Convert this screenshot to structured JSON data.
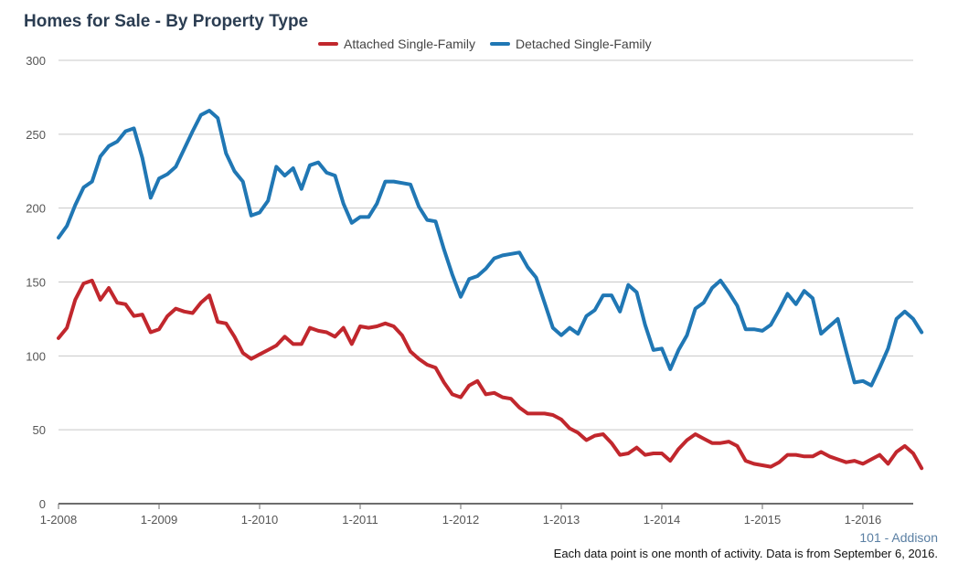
{
  "title": "Homes for Sale - By Property Type",
  "footer": {
    "location": "101 - Addison",
    "note": "Each data point is one month of activity. Data is from September 6, 2016."
  },
  "chart_data": {
    "type": "line",
    "title": "Homes for Sale - By Property Type",
    "xlabel": "",
    "ylabel": "",
    "ylim": [
      0,
      300
    ],
    "yticks": [
      0,
      50,
      100,
      150,
      200,
      250,
      300
    ],
    "xticks": [
      "1-2008",
      "1-2009",
      "1-2010",
      "1-2011",
      "1-2012",
      "1-2013",
      "1-2014",
      "1-2015",
      "1-2016"
    ],
    "x_start": "1-2008",
    "grid": true,
    "legend": "top",
    "series": [
      {
        "name": "Attached Single-Family",
        "color": "#c1272d",
        "values": [
          112,
          119,
          138,
          149,
          151,
          138,
          146,
          136,
          135,
          127,
          128,
          116,
          118,
          127,
          132,
          130,
          129,
          136,
          141,
          123,
          122,
          113,
          102,
          98,
          101,
          104,
          107,
          113,
          108,
          108,
          119,
          117,
          116,
          113,
          119,
          108,
          120,
          119,
          120,
          122,
          120,
          114,
          103,
          98,
          94,
          92,
          82,
          74,
          72,
          80,
          83,
          74,
          75,
          72,
          71,
          65,
          61,
          61,
          61,
          60,
          57,
          51,
          48,
          43,
          46,
          47,
          41,
          33,
          34,
          38,
          33,
          34,
          34,
          29,
          37,
          43,
          47,
          44,
          41,
          41,
          42,
          39,
          29,
          27,
          26,
          25,
          28,
          33,
          33,
          32,
          32,
          35,
          32,
          30,
          28,
          29,
          27,
          30,
          33,
          27,
          35,
          39,
          34,
          24
        ]
      },
      {
        "name": "Detached Single-Family",
        "color": "#2077b4",
        "values": [
          180,
          188,
          202,
          214,
          218,
          235,
          242,
          245,
          252,
          254,
          234,
          207,
          220,
          223,
          228,
          240,
          252,
          263,
          266,
          261,
          237,
          225,
          218,
          195,
          197,
          205,
          228,
          222,
          227,
          213,
          229,
          231,
          224,
          222,
          203,
          190,
          194,
          194,
          203,
          218,
          218,
          217,
          216,
          201,
          192,
          191,
          172,
          155,
          140,
          152,
          154,
          159,
          166,
          168,
          169,
          170,
          160,
          153,
          136,
          119,
          114,
          119,
          115,
          127,
          131,
          141,
          141,
          130,
          148,
          143,
          121,
          104,
          105,
          91,
          104,
          114,
          132,
          136,
          146,
          151,
          143,
          134,
          118,
          118,
          117,
          121,
          131,
          142,
          135,
          144,
          139,
          115,
          120,
          125,
          103,
          82,
          83,
          80,
          92,
          105,
          125,
          130,
          125,
          116
        ]
      }
    ]
  }
}
